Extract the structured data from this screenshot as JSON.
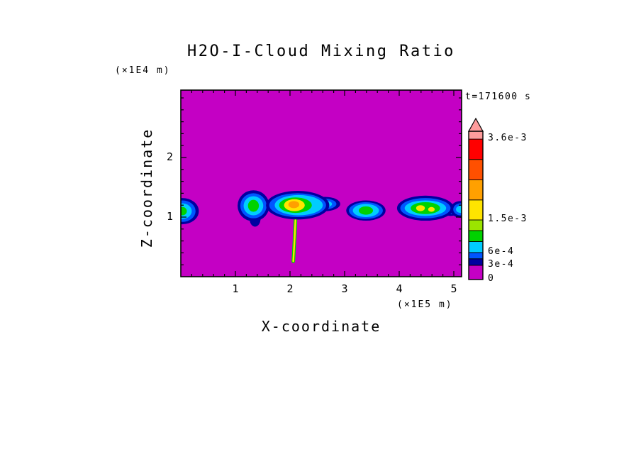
{
  "chart_data": {
    "type": "heatmap",
    "title": "H2O-I-Cloud Mixing Ratio",
    "time_label": "t=171600 s",
    "xlabel": "X-coordinate",
    "zlabel": "Z-coordinate",
    "x_unit_label": "(×1E5 m)",
    "z_unit_label": "(×1E4 m)",
    "xlim": [
      0,
      5.13
    ],
    "zlim": [
      0,
      3.13
    ],
    "x_major_ticks": [
      1,
      2,
      3,
      4,
      5
    ],
    "z_major_ticks": [
      1,
      2
    ],
    "minor_tick_step": 0.2,
    "background_value": 0,
    "background_color": "magenta",
    "contour_levels": [
      0,
      0.0003,
      0.0006,
      0.0015,
      0.0036
    ],
    "palette": {
      "magenta": "#c400c4",
      "navy": "#0000a0",
      "blue": "#0055ff",
      "cyan": "#00ccff",
      "green": "#00d200",
      "yellowgreen": "#9be400",
      "yellow": "#ffe400",
      "orange": "#ffa000",
      "redorange": "#ff5000",
      "red": "#ff0000",
      "pink": "#ff9c9c"
    },
    "colorbar": {
      "segments": [
        {
          "color": "magenta",
          "f0": 0.0,
          "f1": 0.096
        },
        {
          "color": "navy",
          "f0": 0.096,
          "f1": 0.14
        },
        {
          "color": "blue",
          "f0": 0.14,
          "f1": 0.182
        },
        {
          "color": "cyan",
          "f0": 0.182,
          "f1": 0.256
        },
        {
          "color": "green",
          "f0": 0.256,
          "f1": 0.33
        },
        {
          "color": "yellowgreen",
          "f0": 0.33,
          "f1": 0.402
        },
        {
          "color": "yellow",
          "f0": 0.402,
          "f1": 0.537
        },
        {
          "color": "orange",
          "f0": 0.537,
          "f1": 0.672
        },
        {
          "color": "redorange",
          "f0": 0.672,
          "f1": 0.81
        },
        {
          "color": "red",
          "f0": 0.81,
          "f1": 0.947
        },
        {
          "color": "pink",
          "f0": 0.947,
          "f1": 1.0
        }
      ],
      "labels": [
        {
          "text": "3.6e-3",
          "value": 0.0036,
          "f": 0.947
        },
        {
          "text": "1.5e-3",
          "value": 0.0015,
          "f": 0.402
        },
        {
          "text": "6e-4",
          "value": 0.0006,
          "f": 0.182
        },
        {
          "text": "3e-4",
          "value": 0.0003,
          "f": 0.096
        },
        {
          "text": "0",
          "value": 0,
          "f": 0.0
        }
      ]
    },
    "clouds": [
      {
        "name": "left-edge-cell",
        "cx": 0.03,
        "cz": 1.1,
        "layers": [
          {
            "color": "navy",
            "rx": 0.3,
            "rz": 0.22
          },
          {
            "color": "blue",
            "rx": 0.24,
            "rz": 0.18
          },
          {
            "color": "cyan",
            "rx": 0.17,
            "rz": 0.13
          },
          {
            "color": "green",
            "rx": 0.08,
            "rz": 0.07
          }
        ]
      },
      {
        "name": "cell-2",
        "cx": 1.33,
        "cz": 1.19,
        "layers": [
          {
            "color": "navy",
            "dx": 0.03,
            "dz": -0.22,
            "rx": 0.1,
            "rz": 0.13
          },
          {
            "color": "navy",
            "rx": 0.29,
            "rz": 0.26
          },
          {
            "color": "blue",
            "rx": 0.24,
            "rz": 0.21
          },
          {
            "color": "cyan",
            "rx": 0.18,
            "rz": 0.16
          },
          {
            "color": "green",
            "rx": 0.1,
            "rz": 0.1
          }
        ]
      },
      {
        "name": "main-cell",
        "cx": 2.14,
        "cz": 1.2,
        "layers": [
          {
            "color": "navy",
            "dx": 0.5,
            "dz": 0.02,
            "rx": 0.28,
            "rz": 0.12
          },
          {
            "color": "blue",
            "dx": 0.49,
            "dz": 0.02,
            "rx": 0.22,
            "rz": 0.09
          },
          {
            "color": "cyan",
            "dx": 0.48,
            "dz": 0.02,
            "rx": 0.15,
            "rz": 0.06
          },
          {
            "color": "navy",
            "rx": 0.58,
            "rz": 0.24
          },
          {
            "color": "blue",
            "rx": 0.52,
            "rz": 0.2
          },
          {
            "color": "cyan",
            "dx": 0.02,
            "rx": 0.44,
            "rz": 0.17
          },
          {
            "color": "green",
            "dx": -0.04,
            "rx": 0.3,
            "rz": 0.13
          },
          {
            "color": "yellow",
            "dx": -0.06,
            "rx": 0.19,
            "rz": 0.1
          },
          {
            "color": "orange",
            "dx": -0.07,
            "dz": 0.01,
            "rx": 0.1,
            "rz": 0.06
          }
        ]
      },
      {
        "name": "cell-4",
        "cx": 3.39,
        "cz": 1.11,
        "layers": [
          {
            "color": "navy",
            "rx": 0.36,
            "rz": 0.17
          },
          {
            "color": "blue",
            "rx": 0.31,
            "rz": 0.14
          },
          {
            "color": "cyan",
            "rx": 0.24,
            "rz": 0.11
          },
          {
            "color": "green",
            "rx": 0.13,
            "rz": 0.07
          }
        ]
      },
      {
        "name": "cell-5",
        "cx": 4.48,
        "cz": 1.15,
        "layers": [
          {
            "color": "navy",
            "dx": 0.46,
            "dz": -0.03,
            "rx": 0.2,
            "rz": 0.1
          },
          {
            "color": "blue",
            "dx": 0.45,
            "dz": -0.03,
            "rx": 0.15,
            "rz": 0.07
          },
          {
            "color": "cyan",
            "dx": 0.44,
            "dz": -0.03,
            "rx": 0.1,
            "rz": 0.05
          },
          {
            "color": "navy",
            "rx": 0.52,
            "rz": 0.21
          },
          {
            "color": "blue",
            "rx": 0.46,
            "rz": 0.17
          },
          {
            "color": "cyan",
            "rx": 0.38,
            "rz": 0.13
          },
          {
            "color": "green",
            "rx": 0.27,
            "rz": 0.1
          },
          {
            "color": "yellow",
            "dx": -0.09,
            "rx": 0.08,
            "rz": 0.05
          },
          {
            "color": "yellow",
            "dx": 0.11,
            "dz": -0.02,
            "rx": 0.06,
            "rz": 0.04
          }
        ]
      },
      {
        "name": "right-edge-cell",
        "cx": 5.12,
        "cz": 1.13,
        "layers": [
          {
            "color": "navy",
            "rx": 0.18,
            "rz": 0.14
          },
          {
            "color": "blue",
            "rx": 0.13,
            "rz": 0.1
          },
          {
            "color": "cyan",
            "rx": 0.08,
            "rz": 0.06
          }
        ]
      }
    ],
    "fallstreak": {
      "points": [
        [
          2.105,
          1.05
        ],
        [
          2.085,
          0.65
        ],
        [
          2.06,
          0.26
        ]
      ],
      "outer_color": "green",
      "outer_width": 5,
      "inner_color": "yellow",
      "inner_width": 2.4
    }
  }
}
